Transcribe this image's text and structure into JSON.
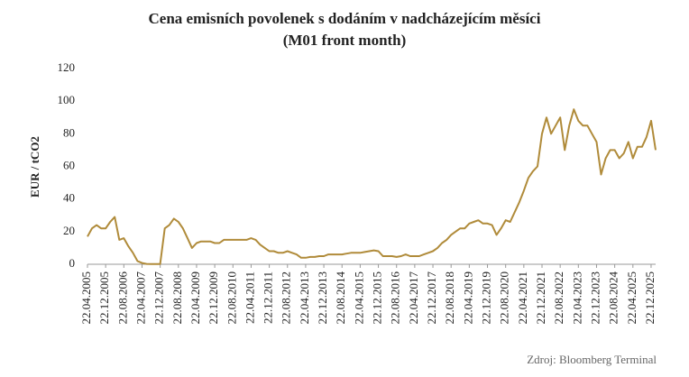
{
  "chart_data": {
    "type": "line",
    "title": "Cena emisních povolenek s dodáním v nadcházejícím měsíci",
    "subtitle": "(M01 front month)",
    "y_label": "EUR / tCO2",
    "source": "Zdroj: Bloomberg Terminal",
    "categories": [
      "22.04.2005",
      null,
      null,
      null,
      "22.12.2005",
      null,
      null,
      null,
      "22.08.2006",
      null,
      null,
      null,
      "22.04.2007",
      null,
      null,
      null,
      "22.12.2007",
      null,
      null,
      null,
      "22.08.2008",
      null,
      null,
      null,
      "22.04.2009",
      null,
      null,
      null,
      "22.12.2009",
      null,
      null,
      null,
      "22.08.2010",
      null,
      null,
      null,
      "22.04.2011",
      null,
      null,
      null,
      "22.12.2011",
      null,
      null,
      null,
      "22.08.2012",
      null,
      null,
      null,
      "22.04.2013",
      null,
      null,
      null,
      "22.12.2013",
      null,
      null,
      null,
      "22.08.2014",
      null,
      null,
      null,
      "22.04.2015",
      null,
      null,
      null,
      "22.12.2015",
      null,
      null,
      null,
      "22.08.2016",
      null,
      null,
      null,
      "22.04.2017",
      null,
      null,
      null,
      "22.12.2017",
      null,
      null,
      null,
      "22.08.2018",
      null,
      null,
      null,
      "22.04.2019",
      null,
      null,
      null,
      "22.12.2019",
      null,
      null,
      null,
      "22.08.2020",
      null,
      null,
      null,
      "22.04.2021",
      null,
      null,
      null,
      "22.12.2021",
      null,
      null,
      null,
      "22.08.2022",
      null,
      null,
      null,
      "22.04.2023",
      null,
      null,
      null,
      "22.12.2023",
      null,
      null,
      null,
      "22.08.2024",
      null,
      null,
      null,
      "22.04.2025",
      null,
      null,
      null,
      "22.12.2025",
      null
    ],
    "series": [
      {
        "name": "M01",
        "color": "#b08b3a",
        "values": [
          17,
          22,
          24,
          22,
          22,
          26,
          29,
          15,
          16,
          11,
          7,
          2,
          0.8,
          0.2,
          0.1,
          0.1,
          0.1,
          22,
          24,
          28,
          26,
          22,
          16,
          10,
          13,
          14,
          14,
          14,
          13,
          13,
          15,
          15,
          15,
          15,
          15,
          15,
          16,
          15,
          12,
          10,
          8,
          8,
          7,
          7,
          8,
          7,
          6,
          4,
          4,
          4.5,
          4.5,
          5,
          5,
          6,
          6,
          6,
          6,
          6.5,
          7,
          7,
          7,
          7.5,
          8,
          8.5,
          8,
          5,
          5,
          5,
          4.5,
          5,
          6,
          5,
          5,
          5,
          6,
          7,
          8,
          10,
          13,
          15,
          18,
          20,
          22,
          22,
          25,
          26,
          27,
          25,
          25,
          24,
          18,
          22,
          27,
          26,
          32,
          38,
          45,
          53,
          57,
          60,
          80,
          90,
          80,
          85,
          90,
          70,
          85,
          95,
          88,
          85,
          85,
          80,
          75,
          55,
          65,
          70,
          70,
          65,
          68,
          75,
          65,
          72,
          72,
          78,
          88,
          70
        ]
      }
    ],
    "ylim": [
      0,
      120
    ],
    "yticks": [
      0,
      20,
      40,
      60,
      80,
      100,
      120
    ],
    "grid": false
  }
}
